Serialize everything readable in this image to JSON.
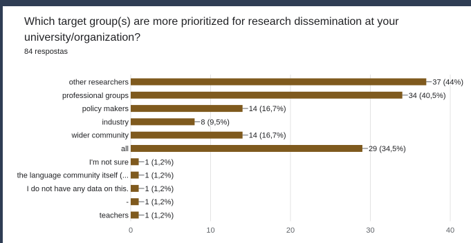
{
  "question": {
    "title": "Which target group(s) are more prioritized for research dissemination at your university/organization?",
    "responses": "84 respostas"
  },
  "colors": {
    "bar": "#7f5a1e",
    "header": "#2f3d54",
    "grid": "#e3e3e3",
    "text": "#202124"
  },
  "chart_data": {
    "type": "bar",
    "orientation": "horizontal",
    "categories": [
      "other researchers",
      "professional groups",
      "policy makers",
      "industry",
      "wider community",
      "all",
      "I'm not sure",
      "the language community itself (...",
      "I do not have any data on this.",
      "-",
      "teachers"
    ],
    "values": [
      37,
      34,
      14,
      8,
      14,
      29,
      1,
      1,
      1,
      1,
      1
    ],
    "data_labels": [
      "37 (44%)",
      "34 (40,5%)",
      "14 (16,7%)",
      "8 (9,5%)",
      "14 (16,7%)",
      "29 (34,5%)",
      "1 (1,2%)",
      "1 (1,2%)",
      "1 (1,2%)",
      "1 (1,2%)",
      "1 (1,2%)"
    ],
    "x_ticks": [
      "0",
      "10",
      "20",
      "30",
      "40"
    ],
    "xlim": [
      0,
      40
    ],
    "grid": true,
    "legend": "none"
  }
}
